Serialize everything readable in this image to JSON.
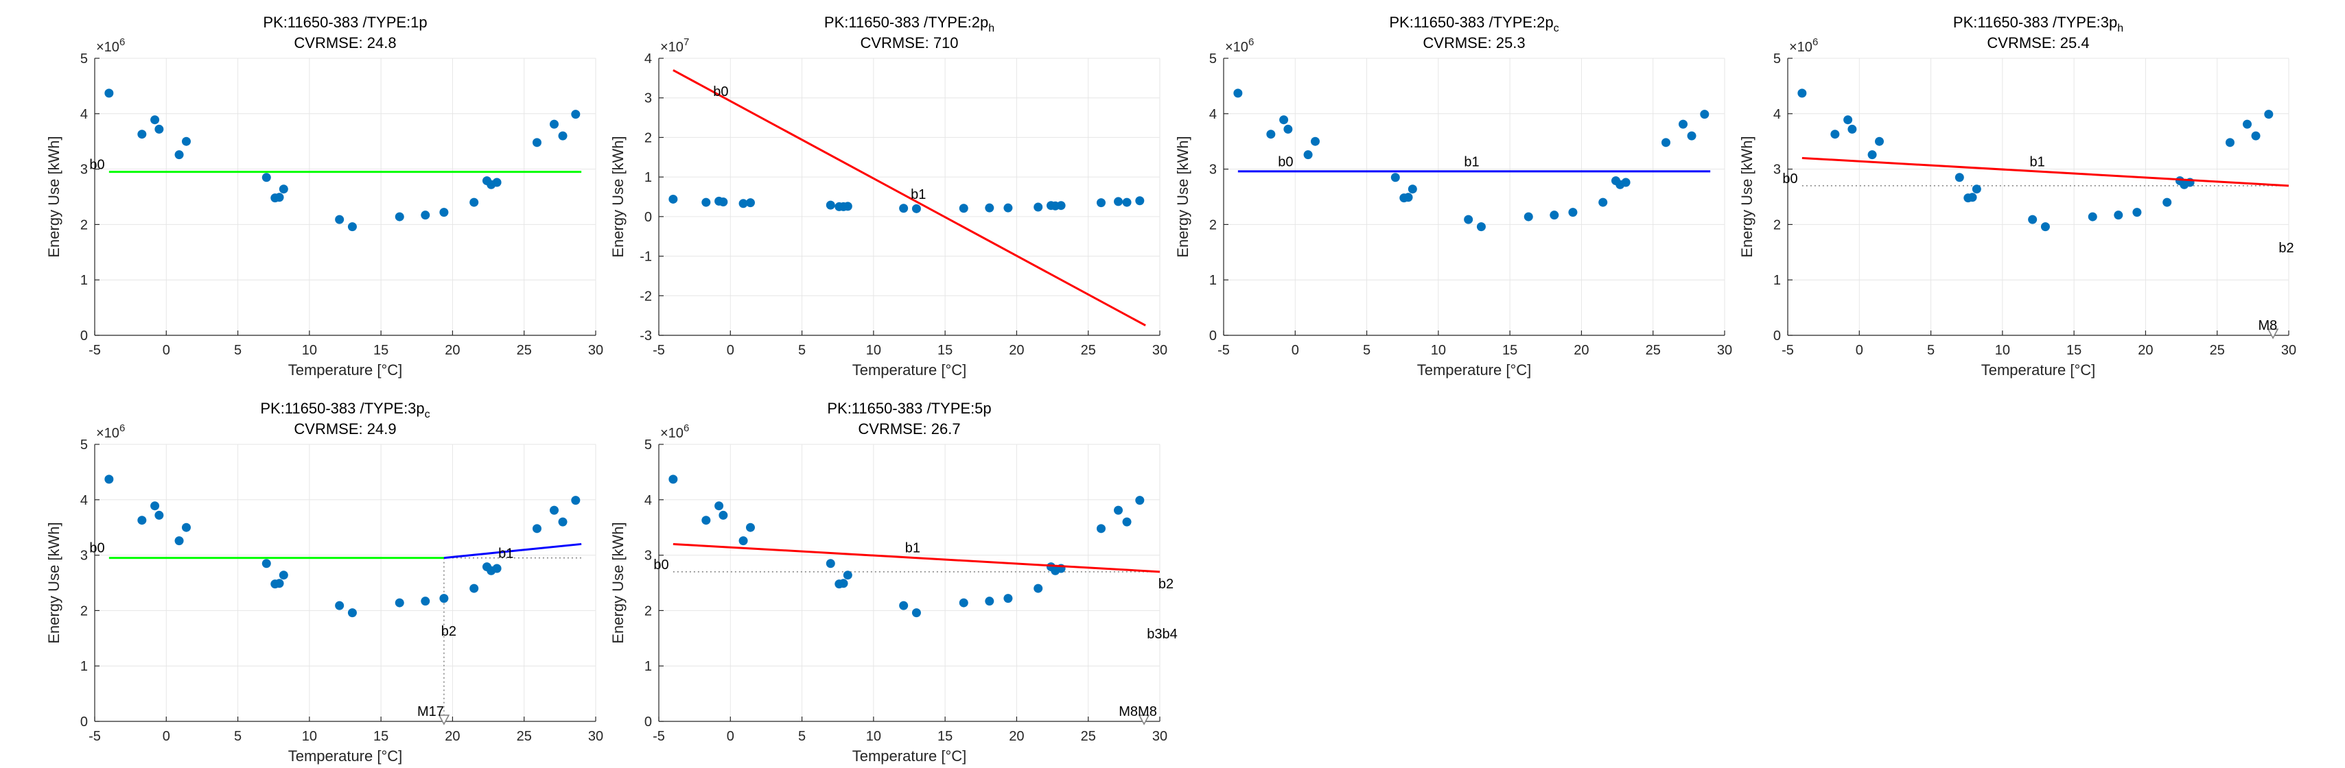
{
  "chart_data": [
    {
      "id": "p1",
      "type": "scatter",
      "title_line1": "PK:11650-383 /TYPE:1p",
      "title_sub": "",
      "title_line2": "CVRMSE: 24.8",
      "xlabel": "Temperature [°C]",
      "ylabel": "Energy Use [kWh]",
      "exponent": "6",
      "xlim": [
        -5,
        30
      ],
      "ylim": [
        0,
        5
      ],
      "xticks": [
        -5,
        0,
        5,
        10,
        15,
        20,
        25,
        30
      ],
      "yticks": [
        0,
        1,
        2,
        3,
        4,
        5
      ],
      "lines": [
        {
          "color": "#00ff00",
          "points": [
            [
              -4,
              2.95
            ],
            [
              29,
              2.95
            ]
          ]
        }
      ],
      "dotted": [],
      "annotations": [
        {
          "text": "b0",
          "x": -4.3,
          "y": 3.0,
          "anchor": "end"
        }
      ],
      "markers": []
    },
    {
      "id": "p2",
      "type": "scatter",
      "title_line1": "PK:11650-383 /TYPE:2p",
      "title_sub": "h",
      "title_line2": "CVRMSE: 710",
      "xlabel": "Temperature [°C]",
      "ylabel": "Energy Use [kWh]",
      "exponent": "7",
      "xlim": [
        -5,
        30
      ],
      "ylim": [
        -3,
        4
      ],
      "xticks": [
        -5,
        0,
        5,
        10,
        15,
        20,
        25,
        30
      ],
      "yticks": [
        -3,
        -2,
        -1,
        0,
        1,
        2,
        3,
        4
      ],
      "lines": [
        {
          "color": "#ff0000",
          "points": [
            [
              -4,
              3.7
            ],
            [
              29,
              -2.75
            ]
          ]
        }
      ],
      "dotted": [],
      "annotations": [
        {
          "text": "b0",
          "x": -1.2,
          "y": 3.05,
          "anchor": "start"
        },
        {
          "text": "b1",
          "x": 12.6,
          "y": 0.45,
          "anchor": "start"
        }
      ],
      "markers": []
    },
    {
      "id": "p3",
      "type": "scatter",
      "title_line1": "PK:11650-383 /TYPE:2p",
      "title_sub": "c",
      "title_line2": "CVRMSE: 25.3",
      "xlabel": "Temperature [°C]",
      "ylabel": "Energy Use [kWh]",
      "exponent": "6",
      "xlim": [
        -5,
        30
      ],
      "ylim": [
        0,
        5
      ],
      "xticks": [
        -5,
        0,
        5,
        10,
        15,
        20,
        25,
        30
      ],
      "yticks": [
        0,
        1,
        2,
        3,
        4,
        5
      ],
      "lines": [
        {
          "color": "#0000ff",
          "points": [
            [
              -4,
              2.96
            ],
            [
              29,
              2.96
            ]
          ]
        }
      ],
      "dotted": [],
      "annotations": [
        {
          "text": "b0",
          "x": -1.2,
          "y": 3.05,
          "anchor": "start"
        },
        {
          "text": "b1",
          "x": 11.8,
          "y": 3.05,
          "anchor": "start"
        }
      ],
      "markers": []
    },
    {
      "id": "p4",
      "type": "scatter",
      "title_line1": "PK:11650-383 /TYPE:3p",
      "title_sub": "h",
      "title_line2": "CVRMSE: 25.4",
      "xlabel": "Temperature [°C]",
      "ylabel": "Energy Use [kWh]",
      "exponent": "6",
      "xlim": [
        -5,
        30
      ],
      "ylim": [
        0,
        5
      ],
      "xticks": [
        -5,
        0,
        5,
        10,
        15,
        20,
        25,
        30
      ],
      "yticks": [
        0,
        1,
        2,
        3,
        4,
        5
      ],
      "lines": [
        {
          "color": "#ff0000",
          "points": [
            [
              -4,
              3.2
            ],
            [
              30,
              2.7
            ]
          ]
        }
      ],
      "dotted": [
        {
          "points": [
            [
              -4,
              2.7
            ],
            [
              30,
              2.7
            ]
          ]
        }
      ],
      "annotations": [
        {
          "text": "b0",
          "x": -4.3,
          "y": 2.75,
          "anchor": "end"
        },
        {
          "text": "b1",
          "x": 11.9,
          "y": 3.05,
          "anchor": "start"
        },
        {
          "text": "b2",
          "x": 29.3,
          "y": 1.5,
          "anchor": "start"
        },
        {
          "text": "M8",
          "x": 29.2,
          "y": 0.1,
          "anchor": "end"
        }
      ],
      "markers": [
        {
          "x": 28.9,
          "y": 0,
          "shape": "triangle-down"
        }
      ]
    },
    {
      "id": "p5",
      "type": "scatter",
      "title_line1": "PK:11650-383 /TYPE:3p",
      "title_sub": "c",
      "title_line2": "CVRMSE: 24.9",
      "xlabel": "Temperature [°C]",
      "ylabel": "Energy Use [kWh]",
      "exponent": "6",
      "xlim": [
        -5,
        30
      ],
      "ylim": [
        0,
        5
      ],
      "xticks": [
        -5,
        0,
        5,
        10,
        15,
        20,
        25,
        30
      ],
      "yticks": [
        0,
        1,
        2,
        3,
        4,
        5
      ],
      "lines": [
        {
          "color": "#00ff00",
          "points": [
            [
              -4,
              2.95
            ],
            [
              19.4,
              2.95
            ]
          ]
        },
        {
          "color": "#0000ff",
          "points": [
            [
              19.4,
              2.95
            ],
            [
              29,
              3.2
            ]
          ]
        }
      ],
      "dotted": [
        {
          "points": [
            [
              19.4,
              2.95
            ],
            [
              29,
              2.95
            ]
          ]
        },
        {
          "points": [
            [
              19.4,
              2.95
            ],
            [
              19.4,
              0
            ]
          ]
        }
      ],
      "annotations": [
        {
          "text": "b0",
          "x": -4.3,
          "y": 3.05,
          "anchor": "end"
        },
        {
          "text": "b1",
          "x": 23.2,
          "y": 2.95,
          "anchor": "start"
        },
        {
          "text": "b2",
          "x": 19.2,
          "y": 1.55,
          "anchor": "start"
        },
        {
          "text": "M17",
          "x": 19.4,
          "y": 0.1,
          "anchor": "end"
        }
      ],
      "markers": [
        {
          "x": 19.4,
          "y": 0,
          "shape": "triangle-down"
        }
      ]
    },
    {
      "id": "p6",
      "type": "scatter",
      "title_line1": "PK:11650-383 /TYPE:5p",
      "title_sub": "",
      "title_line2": "CVRMSE: 26.7",
      "xlabel": "Temperature [°C]",
      "ylabel": "Energy Use [kWh]",
      "exponent": "6",
      "xlim": [
        -5,
        30
      ],
      "ylim": [
        0,
        5
      ],
      "xticks": [
        -5,
        0,
        5,
        10,
        15,
        20,
        25,
        30
      ],
      "yticks": [
        0,
        1,
        2,
        3,
        4,
        5
      ],
      "lines": [
        {
          "color": "#ff0000",
          "points": [
            [
              -4,
              3.2
            ],
            [
              30,
              2.7
            ]
          ]
        }
      ],
      "dotted": [
        {
          "points": [
            [
              -4,
              2.7
            ],
            [
              30,
              2.7
            ]
          ]
        }
      ],
      "annotations": [
        {
          "text": "b0",
          "x": -4.3,
          "y": 2.75,
          "anchor": "end"
        },
        {
          "text": "b1",
          "x": 12.2,
          "y": 3.05,
          "anchor": "start"
        },
        {
          "text": "b2",
          "x": 29.9,
          "y": 2.4,
          "anchor": "start"
        },
        {
          "text": "b3b4",
          "x": 29.1,
          "y": 1.5,
          "anchor": "start"
        },
        {
          "text": "M8M8",
          "x": 29.8,
          "y": 0.1,
          "anchor": "end"
        }
      ],
      "markers": [
        {
          "x": 28.9,
          "y": 0,
          "shape": "triangle-down"
        }
      ]
    }
  ],
  "scatter_points": {
    "x": [
      -4,
      -1.7,
      -0.8,
      -0.5,
      0.9,
      1.4,
      7.0,
      7.6,
      7.9,
      8.2,
      12.1,
      13.0,
      16.3,
      18.1,
      19.4,
      21.5,
      22.4,
      22.7,
      23.1,
      25.9,
      27.1,
      27.7,
      28.6
    ],
    "y_main": [
      4.37,
      3.63,
      3.89,
      3.72,
      3.26,
      3.5,
      2.85,
      2.48,
      2.49,
      2.64,
      2.09,
      1.96,
      2.14,
      2.17,
      2.22,
      2.4,
      2.79,
      2.72,
      2.76,
      3.48,
      3.81,
      3.6,
      3.99
    ],
    "y_p2": [
      0.44,
      0.36,
      0.39,
      0.37,
      0.33,
      0.35,
      0.29,
      0.25,
      0.25,
      0.26,
      0.21,
      0.2,
      0.21,
      0.22,
      0.22,
      0.24,
      0.28,
      0.27,
      0.28,
      0.35,
      0.38,
      0.36,
      0.4
    ],
    "color": "#0072bd"
  }
}
